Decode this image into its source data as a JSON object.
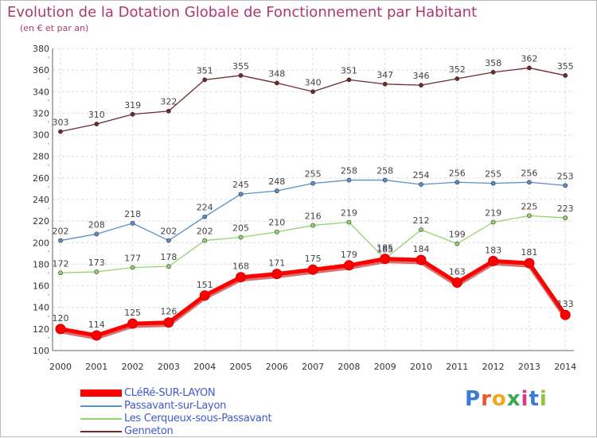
{
  "title": "Evolution de la Dotation Globale de Fonctionnement par Habitant",
  "subtitle": "(en € et par an)",
  "brand": {
    "text": "Proxiti",
    "letters": [
      {
        "ch": "P",
        "color": "#3a7bd5"
      },
      {
        "ch": "r",
        "color": "#e85a2c"
      },
      {
        "ch": "o",
        "color": "#f2a71b"
      },
      {
        "ch": "x",
        "color": "#3aa84b"
      },
      {
        "ch": "i",
        "color": "#d93a8c"
      },
      {
        "ch": "t",
        "color": "#3a7bd5"
      },
      {
        "ch": "i",
        "color": "#8cc63e"
      }
    ]
  },
  "chart_data": {
    "type": "line",
    "title": "Evolution de la Dotation Globale de Fonctionnement par Habitant",
    "subtitle": "(en € et par an)",
    "x": [
      "2000",
      "2001",
      "2002",
      "2003",
      "2004",
      "2005",
      "2006",
      "2007",
      "2008",
      "2009",
      "2010",
      "2011",
      "2012",
      "2013",
      "2014"
    ],
    "ylim": [
      100,
      380
    ],
    "yticks": [
      100,
      120,
      140,
      160,
      180,
      200,
      220,
      240,
      260,
      280,
      300,
      320,
      340,
      360,
      380
    ],
    "grid": true,
    "legend_position": "bottom-left",
    "series": [
      {
        "name": "Genneton",
        "color": "#6e2a2e",
        "values": [
          303,
          310,
          319,
          322,
          351,
          355,
          348,
          340,
          351,
          347,
          346,
          352,
          358,
          362,
          355
        ]
      },
      {
        "name": "Passavant-sur-Layon",
        "color": "#5b8fc9",
        "values": [
          202,
          208,
          218,
          202,
          224,
          245,
          248,
          255,
          258,
          258,
          254,
          256,
          255,
          256,
          253
        ]
      },
      {
        "name": "Les Cerqueux-sous-Passavant",
        "color": "#93d46b",
        "values": [
          172,
          173,
          177,
          178,
          202,
          205,
          210,
          216,
          219,
          185,
          212,
          199,
          219,
          225,
          223
        ]
      },
      {
        "name": "CLéRé-SUR-LAYON",
        "color": "#ff0000",
        "values": [
          120,
          114,
          125,
          126,
          151,
          168,
          171,
          175,
          179,
          185,
          184,
          163,
          183,
          181,
          133
        ]
      }
    ],
    "legend_order": [
      "CLéRé-SUR-LAYON",
      "Passavant-sur-Layon",
      "Les Cerqueux-sous-Passavant",
      "Genneton"
    ]
  }
}
